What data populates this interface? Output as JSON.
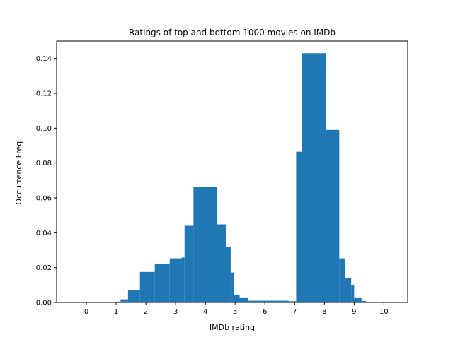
{
  "chart_data": {
    "type": "bar",
    "title": "Ratings of top and bottom 1000 movies on IMDb",
    "xlabel": "IMDb rating",
    "ylabel": "Occurrence Freq.",
    "xlim": [
      -1.0,
      10.8
    ],
    "ylim": [
      0,
      0.15
    ],
    "xticks": [
      "0",
      "1",
      "2",
      "3",
      "4",
      "5",
      "6",
      "7",
      "8",
      "9",
      "10"
    ],
    "yticks": [
      "0.00",
      "0.02",
      "0.04",
      "0.06",
      "0.08",
      "0.10",
      "0.12",
      "0.14"
    ],
    "grid": false,
    "legend": "none",
    "bar_color": "#1f77b4",
    "bins": [
      {
        "x0": 1.05,
        "x1": 1.15,
        "value": 0.0005
      },
      {
        "x0": 1.15,
        "x1": 1.4,
        "value": 0.0018
      },
      {
        "x0": 1.4,
        "x1": 1.8,
        "value": 0.0072
      },
      {
        "x0": 1.8,
        "x1": 2.3,
        "value": 0.0175
      },
      {
        "x0": 2.3,
        "x1": 2.8,
        "value": 0.022
      },
      {
        "x0": 2.8,
        "x1": 3.2,
        "value": 0.0253
      },
      {
        "x0": 3.2,
        "x1": 3.3,
        "value": 0.0258
      },
      {
        "x0": 3.3,
        "x1": 3.6,
        "value": 0.044
      },
      {
        "x0": 3.6,
        "x1": 4.4,
        "value": 0.0663
      },
      {
        "x0": 4.4,
        "x1": 4.7,
        "value": 0.0448
      },
      {
        "x0": 4.7,
        "x1": 4.85,
        "value": 0.0318
      },
      {
        "x0": 4.85,
        "x1": 4.95,
        "value": 0.0172
      },
      {
        "x0": 4.95,
        "x1": 5.15,
        "value": 0.0045
      },
      {
        "x0": 5.15,
        "x1": 5.45,
        "value": 0.0025
      },
      {
        "x0": 5.45,
        "x1": 6.8,
        "value": 0.001
      },
      {
        "x0": 6.8,
        "x1": 7.05,
        "value": 0.0007
      },
      {
        "x0": 7.05,
        "x1": 7.25,
        "value": 0.0865
      },
      {
        "x0": 7.25,
        "x1": 8.05,
        "value": 0.143
      },
      {
        "x0": 8.05,
        "x1": 8.5,
        "value": 0.099
      },
      {
        "x0": 8.5,
        "x1": 8.7,
        "value": 0.0253
      },
      {
        "x0": 8.7,
        "x1": 8.9,
        "value": 0.0142
      },
      {
        "x0": 8.9,
        "x1": 9.0,
        "value": 0.0098
      },
      {
        "x0": 9.0,
        "x1": 9.25,
        "value": 0.0025
      },
      {
        "x0": 9.25,
        "x1": 9.4,
        "value": 0.0008
      },
      {
        "x0": 9.4,
        "x1": 9.7,
        "value": 0.0004
      }
    ]
  }
}
